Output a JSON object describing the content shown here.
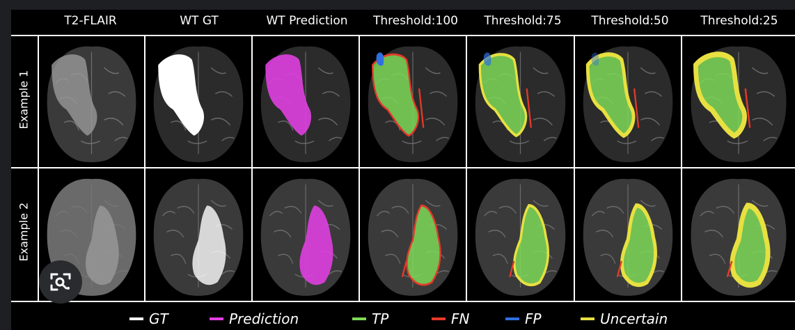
{
  "columns": [
    {
      "label": "T2-FLAIR"
    },
    {
      "label": "WT GT"
    },
    {
      "label": "WT Prediction"
    },
    {
      "label": "Threshold:100"
    },
    {
      "label": "Threshold:75"
    },
    {
      "label": "Threshold:50"
    },
    {
      "label": "Threshold:25"
    }
  ],
  "rows": [
    {
      "label": "Example 1"
    },
    {
      "label": "Example 2"
    }
  ],
  "legend": [
    {
      "label": "GT",
      "color": "#ffffff"
    },
    {
      "label": "Prediction",
      "color": "#e040e0"
    },
    {
      "label": "TP",
      "color": "#7ed957"
    },
    {
      "label": "FN",
      "color": "#e53a2a"
    },
    {
      "label": "FP",
      "color": "#2f6fe0"
    },
    {
      "label": "Uncertain",
      "color": "#e8e040"
    }
  ],
  "colors": {
    "gt": "#ffffff",
    "prediction": "#e040e0",
    "tp": "#7ed957",
    "fn": "#e53a2a",
    "fp": "#2f6fe0",
    "uncertain": "#e8e040"
  },
  "overlay_icon": "lens-search-icon"
}
